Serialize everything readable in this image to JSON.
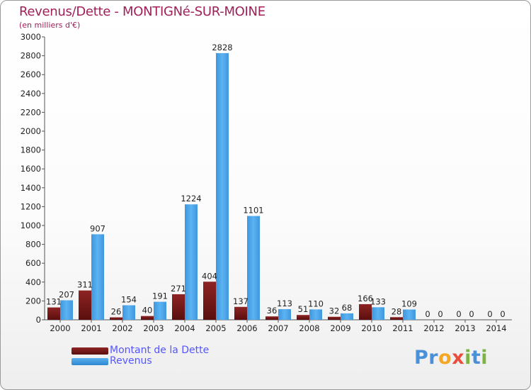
{
  "title": "Revenus/Dette - MONTIGNé-SUR-MOINE",
  "subtitle": "(en milliers d'€)",
  "legend": {
    "dette": "Montant de la Dette",
    "revenus": "Revenus"
  },
  "logo": {
    "text": "Proxiti"
  },
  "colors": {
    "dette": "#6e1414",
    "revenus": "#4aa3e8",
    "title": "#a0205a",
    "legend_text": "#5555ff"
  },
  "chart_data": {
    "type": "bar",
    "title": "Revenus/Dette - MONTIGNé-SUR-MOINE",
    "ylabel": "(en milliers d'€)",
    "xlabel": "",
    "ylim": [
      0,
      3000
    ],
    "yticks": [
      0,
      200,
      400,
      600,
      800,
      1000,
      1200,
      1400,
      1600,
      1800,
      2000,
      2200,
      2400,
      2600,
      2800,
      3000
    ],
    "categories": [
      "2000",
      "2001",
      "2002",
      "2003",
      "2004",
      "2005",
      "2006",
      "2007",
      "2008",
      "2009",
      "2010",
      "2011",
      "2012",
      "2013",
      "2014"
    ],
    "series": [
      {
        "name": "Montant de la Dette",
        "values": [
          131,
          311,
          26,
          40,
          271,
          404,
          137,
          36,
          51,
          32,
          166,
          28,
          0,
          0,
          0
        ]
      },
      {
        "name": "Revenus",
        "values": [
          207,
          907,
          154,
          191,
          1224,
          2828,
          1101,
          113,
          110,
          68,
          133,
          109,
          0,
          0,
          0
        ]
      }
    ],
    "legend": "bottom-left",
    "grid": false
  }
}
